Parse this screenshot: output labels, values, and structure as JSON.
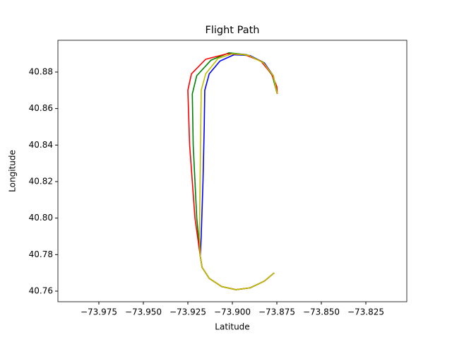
{
  "chart_data": {
    "type": "line",
    "title": "Flight Path",
    "x_label": "Latitude",
    "y_label": "Longitude",
    "xlim": [
      -73.998,
      -73.802
    ],
    "ylim": [
      40.7542,
      40.8974
    ],
    "xticks": [
      {
        "value": -73.975,
        "label": "−73.975"
      },
      {
        "value": -73.95,
        "label": "−73.950"
      },
      {
        "value": -73.925,
        "label": "−73.925"
      },
      {
        "value": -73.9,
        "label": "−73.900"
      },
      {
        "value": -73.875,
        "label": "−73.875"
      },
      {
        "value": -73.85,
        "label": "−73.850"
      },
      {
        "value": -73.825,
        "label": "−73.825"
      }
    ],
    "yticks": [
      40.76,
      40.78,
      {
        "value": 40.8,
        "label": "40.80"
      },
      40.82,
      40.84,
      40.86,
      40.88
    ],
    "series": [
      {
        "color": "#0000ff",
        "x": [
          -73.8765,
          -73.882,
          -73.89,
          -73.898,
          -73.906,
          -73.913,
          -73.917,
          -73.918,
          -73.9175,
          -73.9165,
          -73.9158,
          -73.9155,
          -73.913,
          -73.907,
          -73.899,
          -73.89,
          -73.882,
          -73.877,
          -73.8748
        ],
        "values": [
          40.77,
          40.7655,
          40.7618,
          40.7608,
          40.7625,
          40.767,
          40.773,
          40.779,
          40.79,
          40.82,
          40.85,
          40.87,
          40.879,
          40.886,
          40.8895,
          40.889,
          40.885,
          40.878,
          40.868
        ]
      },
      {
        "color": "#008000",
        "x": [
          -73.8765,
          -73.882,
          -73.89,
          -73.898,
          -73.906,
          -73.913,
          -73.917,
          -73.918,
          -73.92,
          -73.922,
          -73.9225,
          -73.92,
          -73.912,
          -73.902,
          -73.892,
          -73.883,
          -73.8775,
          -73.8748
        ],
        "values": [
          40.77,
          40.7655,
          40.7618,
          40.7608,
          40.7625,
          40.767,
          40.773,
          40.779,
          40.8,
          40.84,
          40.868,
          40.878,
          40.8865,
          40.8905,
          40.8895,
          40.8855,
          40.878,
          40.868
        ]
      },
      {
        "color": "#ff0000",
        "x": [
          -73.8765,
          -73.882,
          -73.89,
          -73.898,
          -73.906,
          -73.913,
          -73.917,
          -73.918,
          -73.921,
          -73.924,
          -73.925,
          -73.923,
          -73.915,
          -73.903,
          -73.893,
          -73.884,
          -73.878,
          -73.875,
          -73.8748
        ],
        "values": [
          40.77,
          40.7655,
          40.7618,
          40.7608,
          40.7625,
          40.767,
          40.773,
          40.779,
          40.8,
          40.84,
          40.87,
          40.879,
          40.887,
          40.89,
          40.8895,
          40.886,
          40.879,
          40.872,
          40.868
        ]
      },
      {
        "color": "#bfbf00",
        "x": [
          -73.8765,
          -73.882,
          -73.89,
          -73.898,
          -73.906,
          -73.913,
          -73.917,
          -73.918,
          -73.9185,
          -73.918,
          -73.9175,
          -73.915,
          -73.908,
          -73.9,
          -73.891,
          -73.8825,
          -73.877,
          -73.8748
        ],
        "values": [
          40.77,
          40.7655,
          40.7618,
          40.7608,
          40.7625,
          40.767,
          40.773,
          40.779,
          40.79,
          40.83,
          40.87,
          40.879,
          40.8875,
          40.89,
          40.8892,
          40.885,
          40.878,
          40.868
        ]
      }
    ]
  }
}
